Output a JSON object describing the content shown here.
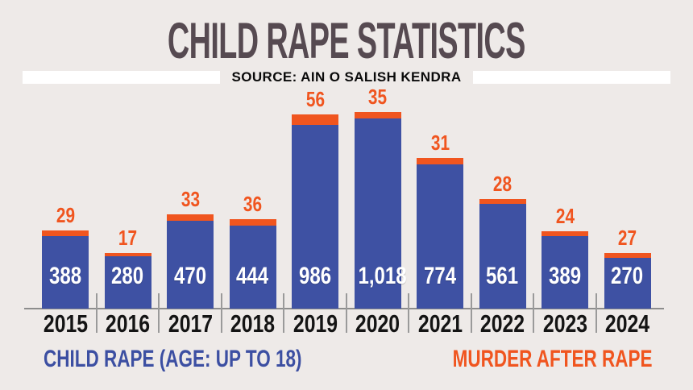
{
  "header": {
    "title": "CHILD RAPE STATISTICS",
    "source_label": "SOURCE: AIN O SALISH KENDRA"
  },
  "legend": {
    "child_rape": "CHILD RAPE (AGE: UP TO 18)",
    "murder_after_rape": "MURDER AFTER RAPE"
  },
  "colors": {
    "background": "#eeeae8",
    "bar_blue": "#3e51a3",
    "accent_orange": "#f0551f",
    "title_text": "#564a51",
    "axis_gray": "#8d8d8d",
    "year_text": "#141414",
    "source_strip": "#ffffff",
    "bar_value_text": "#ffffff"
  },
  "chart_data": {
    "type": "bar",
    "stacked": true,
    "title": "CHILD RAPE STATISTICS",
    "source": "AIN O SALISH KENDRA",
    "categories": [
      "2015",
      "2016",
      "2017",
      "2018",
      "2019",
      "2020",
      "2021",
      "2022",
      "2023",
      "2024"
    ],
    "series": [
      {
        "name": "CHILD RAPE (AGE: UP TO 18)",
        "color": "#3e51a3",
        "values": [
          388,
          280,
          470,
          444,
          986,
          1018,
          774,
          561,
          389,
          270
        ],
        "labels": [
          "388",
          "280",
          "470",
          "444",
          "986",
          "1,018",
          "774",
          "561",
          "389",
          "270"
        ]
      },
      {
        "name": "MURDER AFTER RAPE",
        "color": "#f0551f",
        "values": [
          29,
          17,
          33,
          36,
          56,
          35,
          31,
          28,
          24,
          27
        ],
        "labels": [
          "29",
          "17",
          "33",
          "36",
          "56",
          "35",
          "31",
          "28",
          "24",
          "27"
        ]
      }
    ],
    "ylim": [
      0,
      1100
    ],
    "grid": false,
    "legend_position": "bottom",
    "value_labels": "inside-bottom (series 1), above-cap (series 2)"
  }
}
